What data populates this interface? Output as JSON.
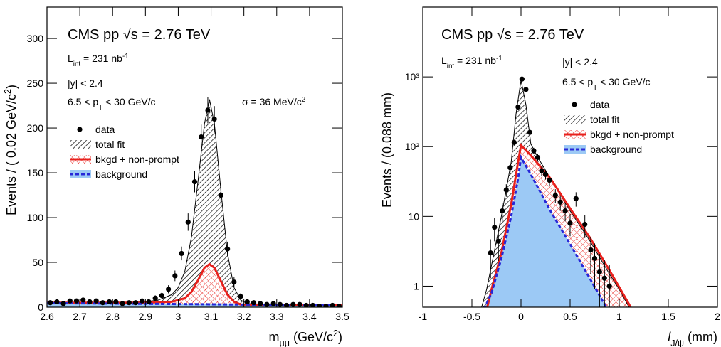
{
  "chart_data": [
    {
      "type": "line",
      "annotations": [
        {
          "parts": [
            {
              "text": "CMS pp √s = 2.76 TeV"
            }
          ]
        },
        {
          "parts": [
            {
              "text": "L"
            },
            {
              "text": "int",
              "shift": "sub"
            },
            {
              "text": " =  231 nb"
            },
            {
              "text": "-1",
              "shift": "sup"
            }
          ]
        },
        {
          "parts": [
            {
              "text": "|y| < 2.4"
            }
          ]
        },
        {
          "parts": [
            {
              "text": "6.5 < p"
            },
            {
              "text": "T",
              "shift": "sub"
            },
            {
              "text": " < 30 GeV/c"
            }
          ]
        },
        {
          "parts": [
            {
              "text": "σ = 36 MeV/c"
            },
            {
              "text": "2",
              "shift": "sup"
            }
          ]
        }
      ],
      "x_label": [
        {
          "text": "m"
        },
        {
          "text": "μμ",
          "shift": "sub"
        },
        {
          "text": " (GeV/c"
        },
        {
          "text": "2",
          "shift": "sup"
        },
        {
          "text": ")"
        }
      ],
      "y_label": [
        {
          "text": "Events / ( 0.02 GeV/c"
        },
        {
          "text": "2",
          "shift": "sup"
        },
        {
          "text": ")"
        }
      ],
      "xlim": [
        2.6,
        3.5
      ],
      "xticks": [
        2.6,
        2.7,
        2.8,
        2.9,
        3,
        3.1,
        3.2,
        3.3,
        3.4,
        3.5
      ],
      "ylim": [
        0,
        335
      ],
      "yticks": [
        0,
        50,
        100,
        150,
        200,
        250,
        300
      ],
      "log_y": false,
      "legend": "upper left",
      "series": [
        {
          "name": "total fit",
          "style": "hatch",
          "color": "#000000",
          "x": [
            2.6,
            2.8,
            2.9,
            2.94,
            2.98,
            3.0,
            3.02,
            3.04,
            3.06,
            3.08,
            3.095,
            3.11,
            3.13,
            3.15,
            3.17,
            3.19,
            3.21,
            3.3,
            3.5
          ],
          "values": [
            5,
            5,
            6,
            8,
            14,
            22,
            40,
            78,
            140,
            205,
            232,
            205,
            130,
            60,
            22,
            8,
            4,
            3,
            2
          ]
        },
        {
          "name": "bkgd + non-prompt",
          "style": "crosshatch",
          "color": "#e8201c",
          "x": [
            2.6,
            2.9,
            2.98,
            3.02,
            3.04,
            3.06,
            3.08,
            3.095,
            3.11,
            3.13,
            3.15,
            3.17,
            3.19,
            3.3,
            3.5
          ],
          "values": [
            5,
            5,
            6,
            10,
            17,
            30,
            44,
            48,
            44,
            29,
            14,
            6,
            3,
            2.5,
            2
          ]
        },
        {
          "name": "background",
          "style": "fill",
          "color": "#2727d8",
          "x": [
            2.6,
            3.0,
            3.5
          ],
          "values": [
            4.5,
            3.5,
            2
          ]
        },
        {
          "name": "data",
          "style": "points",
          "color": "#000000",
          "x": [
            2.61,
            2.63,
            2.65,
            2.67,
            2.69,
            2.71,
            2.73,
            2.75,
            2.77,
            2.79,
            2.81,
            2.83,
            2.85,
            2.87,
            2.89,
            2.91,
            2.93,
            2.95,
            2.97,
            2.99,
            3.01,
            3.03,
            3.05,
            3.07,
            3.09,
            3.11,
            3.13,
            3.15,
            3.17,
            3.19,
            3.21,
            3.23,
            3.25,
            3.27,
            3.29,
            3.31,
            3.33,
            3.35,
            3.37,
            3.39,
            3.41,
            3.43,
            3.45,
            3.47,
            3.49
          ],
          "values": [
            5,
            6,
            4,
            7,
            7,
            8,
            6,
            7,
            5,
            6,
            6,
            4,
            5,
            5,
            7,
            6,
            10,
            13,
            20,
            35,
            60,
            95,
            140,
            190,
            220,
            210,
            125,
            65,
            28,
            12,
            6,
            5,
            4,
            3,
            4,
            3,
            2,
            3,
            3,
            2,
            2,
            1,
            1,
            2,
            1
          ],
          "errors": [
            2.2,
            2.4,
            2,
            2.6,
            2.6,
            2.8,
            2.4,
            2.6,
            2.2,
            2.4,
            2.4,
            2,
            2.2,
            2.2,
            2.6,
            2.4,
            3.2,
            3.6,
            4.5,
            5.9,
            7.7,
            9.7,
            11.8,
            13.8,
            14.8,
            14.5,
            11.2,
            8.1,
            5.3,
            3.5,
            2.4,
            2.2,
            2,
            1.7,
            2,
            1.7,
            1.4,
            1.7,
            1.7,
            1.4,
            1.4,
            1,
            1,
            1.4,
            1
          ]
        }
      ]
    },
    {
      "type": "line",
      "annotations": [
        {
          "parts": [
            {
              "text": "CMS pp √s = 2.76 TeV"
            }
          ]
        },
        {
          "parts": [
            {
              "text": "L"
            },
            {
              "text": "int",
              "shift": "sub"
            },
            {
              "text": " =  231 nb"
            },
            {
              "text": "-1",
              "shift": "sup"
            }
          ]
        },
        {
          "parts": [
            {
              "text": "|y| < 2.4"
            }
          ]
        },
        {
          "parts": [
            {
              "text": "6.5 < p"
            },
            {
              "text": "T",
              "shift": "sub"
            },
            {
              "text": " < 30 GeV/c"
            }
          ]
        }
      ],
      "x_label": [
        {
          "text": "l",
          "italic": true
        },
        {
          "text": "J/ψ",
          "shift": "sub"
        },
        {
          "text": " (mm)"
        }
      ],
      "y_label": [
        {
          "text": "Events / (0.088 mm)"
        }
      ],
      "xlim": [
        -1,
        2
      ],
      "xticks": [
        -1,
        -0.5,
        0,
        0.5,
        1,
        1.5,
        2
      ],
      "ylim": [
        0.5,
        10000
      ],
      "yticks": [
        1,
        10,
        {
          "value": 100,
          "label": "10²"
        },
        {
          "value": 1000,
          "label": "10³"
        }
      ],
      "log_y": true,
      "legend": "upper right",
      "series": [
        {
          "name": "total fit",
          "style": "hatch",
          "color": "#000000",
          "x": [
            -0.42,
            -0.35,
            -0.3,
            -0.2,
            -0.1,
            -0.05,
            0,
            0.05,
            0.1,
            0.15,
            0.2,
            0.3,
            0.5,
            0.7,
            0.9,
            1.0,
            1.1,
            1.15
          ],
          "values": [
            0.4,
            0.9,
            2,
            10,
            60,
            300,
            900,
            400,
            110,
            80,
            60,
            35,
            12,
            4.5,
            1.5,
            0.9,
            0.5,
            0.4
          ]
        },
        {
          "name": "bkgd + non-prompt",
          "style": "crosshatch",
          "color": "#e8201c",
          "x": [
            -0.36,
            -0.3,
            -0.2,
            -0.1,
            -0.03,
            0,
            0.1,
            0.3,
            0.5,
            0.7,
            0.9,
            1.1,
            1.15
          ],
          "values": [
            0.4,
            0.9,
            3,
            15,
            60,
            105,
            75,
            35,
            13,
            5,
            1.7,
            0.55,
            0.4
          ]
        },
        {
          "name": "background",
          "style": "fill",
          "color": "#2727d8",
          "x": [
            -0.4,
            -0.3,
            -0.2,
            -0.1,
            -0.03,
            0,
            0.1,
            0.3,
            0.5,
            0.7,
            0.85,
            0.92
          ],
          "values": [
            0.4,
            0.8,
            2.5,
            10,
            35,
            70,
            40,
            12,
            4,
            1.3,
            0.55,
            0.4
          ]
        },
        {
          "name": "data",
          "style": "points",
          "color": "#000000",
          "x": [
            -0.31,
            -0.27,
            -0.23,
            -0.19,
            -0.15,
            -0.11,
            -0.07,
            -0.03,
            0.01,
            0.05,
            0.09,
            0.13,
            0.17,
            0.21,
            0.25,
            0.29,
            0.35,
            0.4,
            0.45,
            0.5,
            0.56,
            0.65,
            0.71,
            0.75,
            0.8,
            0.85,
            0.9
          ],
          "values": [
            3,
            7,
            4.4,
            12,
            24,
            50,
            115,
            370,
            930,
            660,
            160,
            87,
            70,
            45,
            40,
            33,
            20,
            16,
            12,
            8,
            18,
            7.7,
            3.3,
            2.5,
            1.6,
            1.3,
            1
          ],
          "errors": [
            1.7,
            2.6,
            2.1,
            3.5,
            4.9,
            7.1,
            10.7,
            19.2,
            30.5,
            25.7,
            12.6,
            9.3,
            8.4,
            6.7,
            6.3,
            5.7,
            4.5,
            4,
            3.5,
            2.8,
            4.2,
            2.8,
            1.8,
            1.6,
            1.3,
            1.1,
            1
          ]
        }
      ]
    }
  ]
}
